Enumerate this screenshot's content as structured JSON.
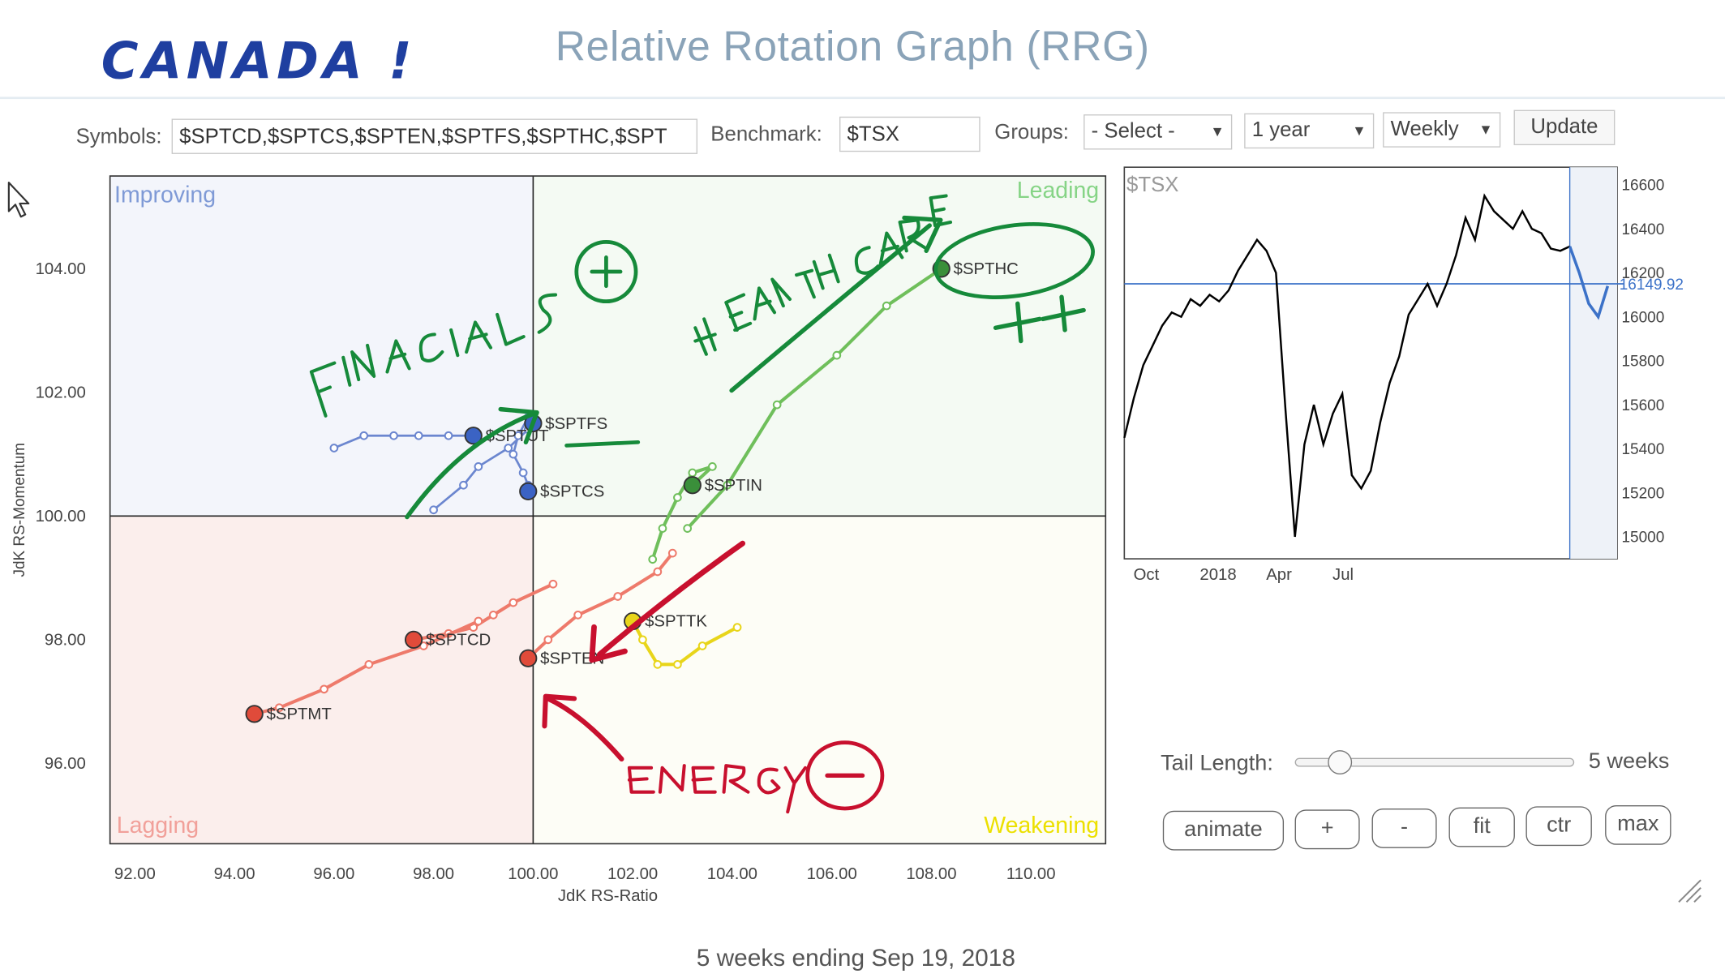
{
  "annotation_title": "CANADA !",
  "title": "Relative Rotation Graph (RRG)",
  "toolbar": {
    "symbols_label": "Symbols:",
    "symbols_value": "$SPTCD,$SPTCS,$SPTEN,$SPTFS,$SPTHC,$SPT",
    "benchmark_label": "Benchmark:",
    "benchmark_value": "$TSX",
    "groups_label": "Groups:",
    "groups_value": "- Select -",
    "period_value": "1 year",
    "frequency_value": "Weekly",
    "update_label": "Update"
  },
  "controls": {
    "tail_length_label": "Tail Length:",
    "tail_length_value": "5 weeks",
    "tail_length_fraction": 0.16,
    "buttons": [
      "animate",
      "+",
      "-",
      "fit",
      "ctr",
      "max"
    ]
  },
  "footer": "5 weeks ending Sep 19, 2018",
  "colors": {
    "improving": "#6f8fd0",
    "leading": "#5cc05c",
    "weakening": "#ece000",
    "lagging": "#f08080",
    "blue_series": "#3b63c4",
    "green_series": "#3a8f3a",
    "red_series": "#e04b3a",
    "yellow_series": "#e8d51a",
    "hand_green": "#168a3a",
    "hand_red": "#c8102e",
    "hand_blue": "#1f3fa0",
    "price_line": "#000000",
    "recent_line": "#3c72c8"
  },
  "chart_data": [
    {
      "type": "scatter",
      "title": "",
      "xlabel": "JdK RS-Ratio",
      "ylabel": "JdK RS-Momentum",
      "xlim": [
        91.5,
        111.5
      ],
      "ylim": [
        94.7,
        105.5
      ],
      "x_ticks": [
        92,
        94,
        96,
        98,
        100,
        102,
        104,
        106,
        108,
        110
      ],
      "x_tick_labels": [
        "92.00",
        "94.00",
        "96.00",
        "98.00",
        "100.00",
        "102.00",
        "104.00",
        "106.00",
        "108.00",
        "110.00"
      ],
      "y_ticks": [
        96,
        98,
        100,
        102,
        104
      ],
      "y_tick_labels": [
        "96.00",
        "98.00",
        "100.00",
        "102.00",
        "104.00"
      ],
      "quadrants": {
        "top_left": "Improving",
        "top_right": "Leading",
        "bottom_right": "Weakening",
        "bottom_left": "Lagging"
      },
      "series": [
        {
          "name": "$SPTHC",
          "color": "green",
          "points": [
            [
              103.1,
              99.8
            ],
            [
              103.9,
              100.5
            ],
            [
              104.9,
              101.8
            ],
            [
              106.1,
              102.6
            ],
            [
              107.1,
              103.4
            ],
            [
              108.2,
              104.0
            ]
          ]
        },
        {
          "name": "$SPTIN",
          "color": "green",
          "points": [
            [
              102.4,
              99.3
            ],
            [
              102.6,
              99.8
            ],
            [
              102.9,
              100.3
            ],
            [
              103.2,
              100.7
            ],
            [
              103.6,
              100.8
            ],
            [
              103.2,
              100.5
            ]
          ]
        },
        {
          "name": "$SPTFS",
          "color": "blue",
          "points": [
            [
              98.0,
              100.1
            ],
            [
              98.6,
              100.5
            ],
            [
              98.9,
              100.8
            ],
            [
              99.5,
              101.1
            ],
            [
              99.9,
              101.4
            ],
            [
              100.0,
              101.5
            ]
          ]
        },
        {
          "name": "$SPTUT",
          "color": "blue",
          "points": [
            [
              96.0,
              101.1
            ],
            [
              96.6,
              101.3
            ],
            [
              97.2,
              101.3
            ],
            [
              97.7,
              101.3
            ],
            [
              98.3,
              101.3
            ],
            [
              98.8,
              101.3
            ]
          ]
        },
        {
          "name": "$SPTCS",
          "color": "blue",
          "points": [
            [
              99.9,
              101.6
            ],
            [
              99.7,
              101.3
            ],
            [
              99.6,
              101.0
            ],
            [
              99.8,
              100.7
            ],
            [
              99.9,
              100.5
            ],
            [
              99.9,
              100.4
            ]
          ]
        },
        {
          "name": "$SPTCD",
          "color": "red",
          "points": [
            [
              100.4,
              98.9
            ],
            [
              99.6,
              98.6
            ],
            [
              99.2,
              98.4
            ],
            [
              98.8,
              98.2
            ],
            [
              98.3,
              98.1
            ],
            [
              97.6,
              98.0
            ]
          ]
        },
        {
          "name": "$SPTEN",
          "color": "red",
          "points": [
            [
              102.8,
              99.4
            ],
            [
              102.5,
              99.1
            ],
            [
              101.7,
              98.7
            ],
            [
              100.9,
              98.4
            ],
            [
              100.3,
              98.0
            ],
            [
              99.9,
              97.7
            ]
          ]
        },
        {
          "name": "$SPTMT",
          "color": "red",
          "points": [
            [
              98.9,
              98.3
            ],
            [
              97.8,
              97.9
            ],
            [
              96.7,
              97.6
            ],
            [
              95.8,
              97.2
            ],
            [
              94.9,
              96.9
            ],
            [
              94.4,
              96.8
            ]
          ]
        },
        {
          "name": "$SPTTK",
          "color": "yellow",
          "points": [
            [
              104.1,
              98.2
            ],
            [
              103.4,
              97.9
            ],
            [
              102.9,
              97.6
            ],
            [
              102.5,
              97.6
            ],
            [
              102.2,
              98.0
            ],
            [
              102.0,
              98.3
            ]
          ]
        }
      ]
    },
    {
      "type": "line",
      "title": "$TSX",
      "xlim": [
        0,
        52
      ],
      "ylim": [
        14900,
        16680
      ],
      "y_ticks": [
        15000,
        15200,
        15400,
        15600,
        15800,
        16000,
        16200,
        16400,
        16600
      ],
      "y_tick_labels": [
        "15000",
        "15200",
        "15400",
        "15600",
        "15800",
        "16000",
        "16200",
        "16400",
        "16600"
      ],
      "x_tick_positions": [
        0.5,
        7.5,
        14.5,
        21.5
      ],
      "x_tick_labels": [
        "Oct",
        "2018",
        "Apr",
        "Jul"
      ],
      "reference_value": 16149.92,
      "reference_label": "16149.92",
      "highlight_from_x": 47,
      "values": [
        15450,
        15630,
        15780,
        15870,
        15960,
        16020,
        16000,
        16080,
        16050,
        16100,
        16070,
        16120,
        16210,
        16280,
        16350,
        16300,
        16200,
        15580,
        15000,
        15420,
        15600,
        15420,
        15560,
        15650,
        15280,
        15220,
        15300,
        15520,
        15700,
        15820,
        16010,
        16080,
        16150,
        16050,
        16150,
        16280,
        16450,
        16350,
        16550,
        16480,
        16440,
        16400,
        16480,
        16400,
        16380,
        16310,
        16300,
        16320,
        16200,
        16060,
        16000,
        16140
      ]
    }
  ]
}
